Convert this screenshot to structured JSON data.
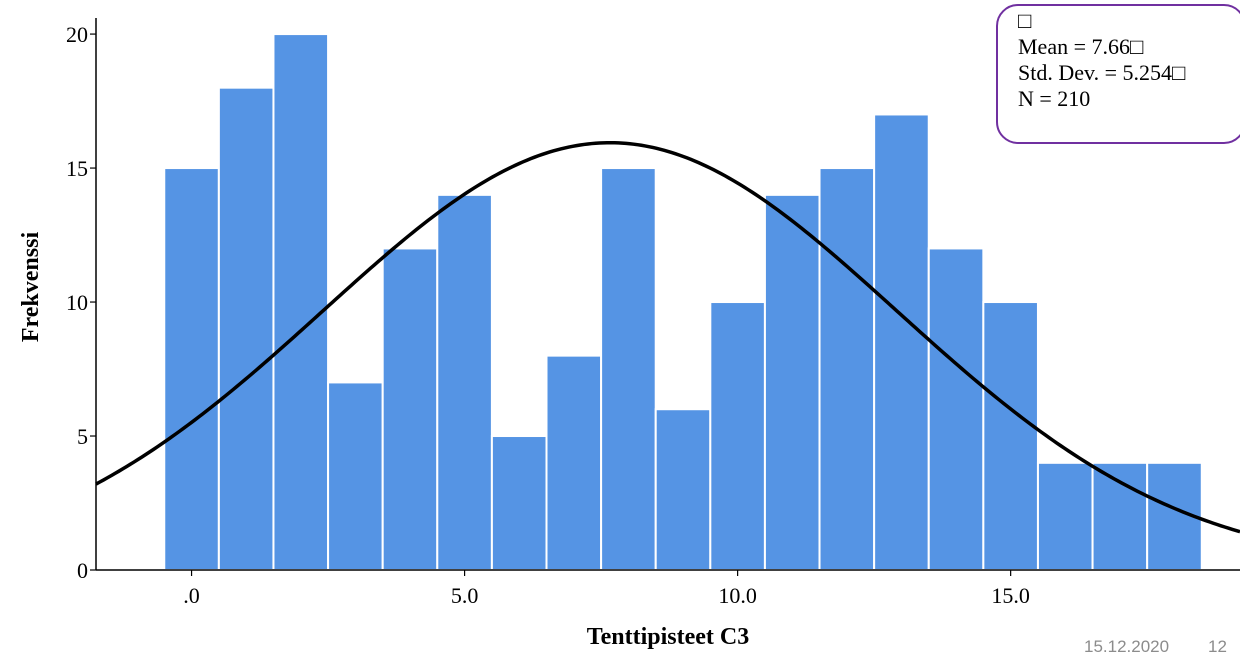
{
  "chart_data": {
    "type": "bar",
    "subtype": "histogram with normal curve",
    "xlabel": "Tenttipisteet C3",
    "ylabel": "Frekvenssi",
    "x_ticks": [
      {
        "value": 0,
        "label": ".0"
      },
      {
        "value": 5,
        "label": "5.0"
      },
      {
        "value": 10,
        "label": "10.0"
      },
      {
        "value": 15,
        "label": "15.0"
      }
    ],
    "y_ticks": [
      0,
      5,
      10,
      15,
      20
    ],
    "xlim": [
      -1.75,
      19.2
    ],
    "ylim": [
      0,
      20.6
    ],
    "bin_width": 1,
    "bin_centers": [
      0,
      1,
      2,
      3,
      4,
      5,
      6,
      7,
      8,
      9,
      10,
      11,
      12,
      13,
      14,
      15,
      16,
      17,
      18
    ],
    "values": [
      15,
      18,
      20,
      7,
      12,
      14,
      5,
      8,
      15,
      6,
      10,
      14,
      15,
      17,
      12,
      10,
      4,
      4,
      4
    ],
    "normal_curve": {
      "mean": 7.66,
      "std_dev": 5.254,
      "n": 210
    },
    "stats": {
      "marker": "□",
      "mean_label": "Mean = 7.66□",
      "std_label": "Std. Dev. = 5.254□",
      "n_label": "N = 210"
    },
    "colors": {
      "bar": "#5594e4",
      "curve": "#000000",
      "stats_border": "#7030a0"
    },
    "grid": false,
    "legend": "top-right"
  },
  "footer": {
    "date": "15.12.2020",
    "page": "12"
  }
}
